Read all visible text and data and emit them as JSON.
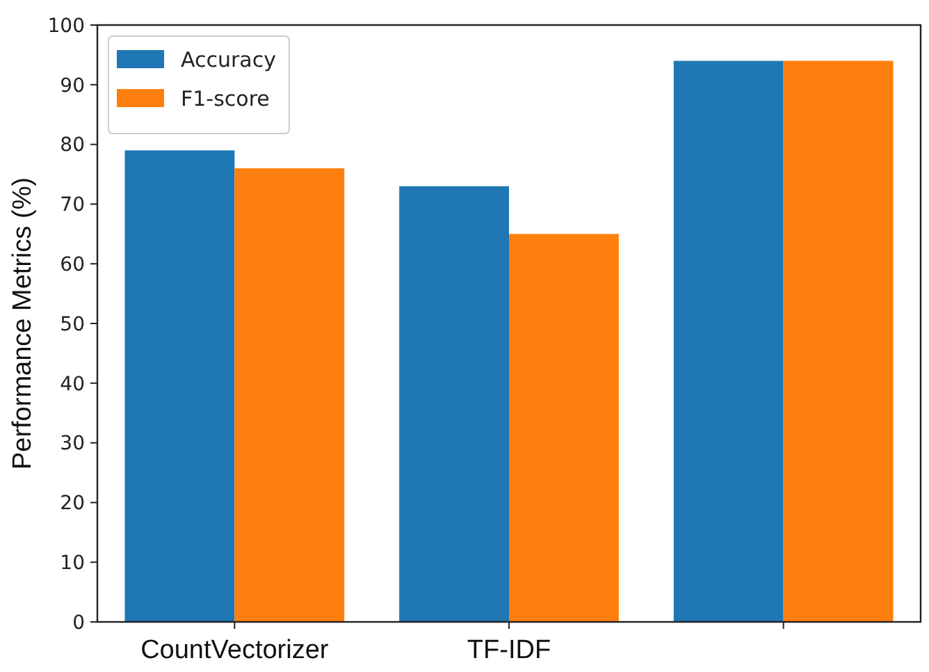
{
  "chart_data": {
    "type": "bar",
    "ylabel": "Performance Metrics (%)",
    "categories": [
      "CountVectorizer",
      "TF-IDF",
      null
    ],
    "series": [
      {
        "name": "Accuracy",
        "color": "#1f77b4",
        "values": [
          79,
          73,
          94
        ]
      },
      {
        "name": "F1-score",
        "color": "#ff7f0e",
        "values": [
          76,
          65,
          94
        ]
      }
    ],
    "ylim": [
      0,
      100
    ],
    "yticks": [
      0,
      10,
      20,
      30,
      40,
      50,
      60,
      70,
      80,
      90,
      100
    ],
    "legend": "top left",
    "grid": false
  }
}
